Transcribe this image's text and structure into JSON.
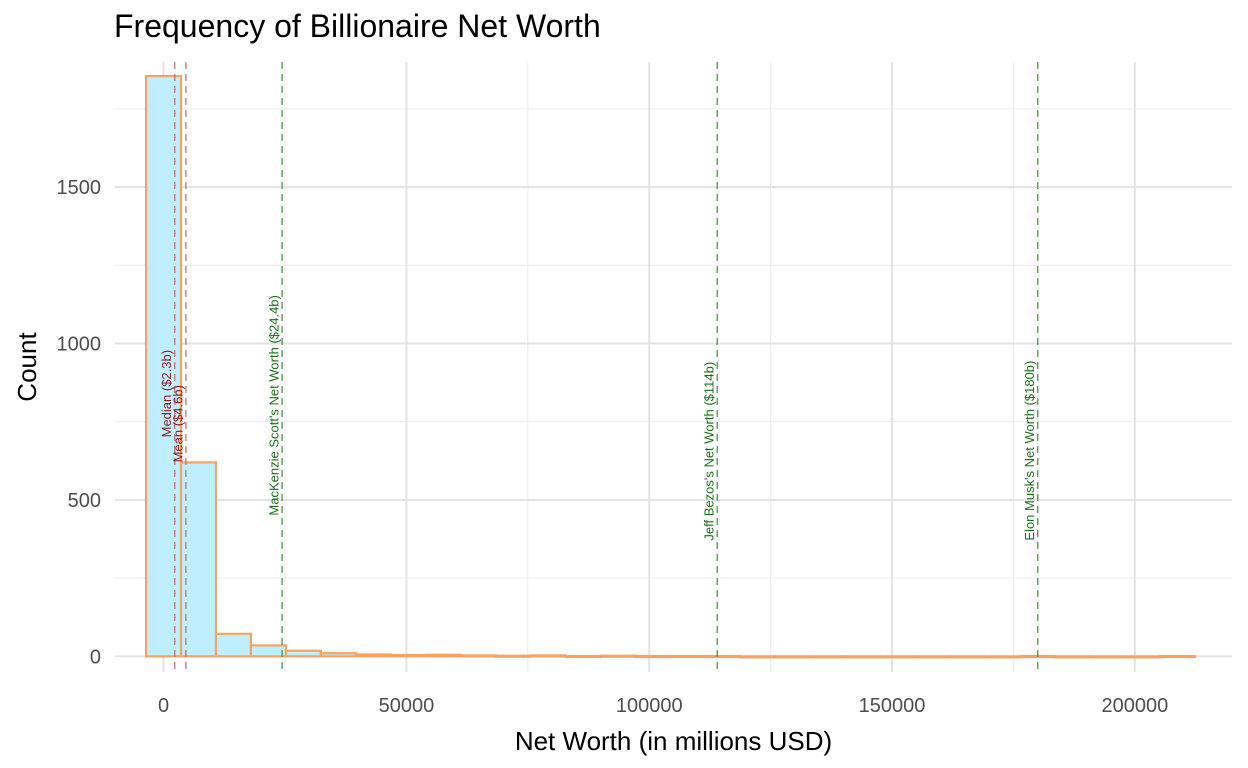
{
  "chart_data": {
    "type": "bar",
    "subtype": "histogram",
    "title": "Frequency of Billionaire Net Worth",
    "xlabel": "Net Worth (in millions USD)",
    "ylabel": "Count",
    "xlim": [
      -10000,
      220000
    ],
    "ylim": [
      -50,
      1900
    ],
    "x_ticks": [
      0,
      50000,
      100000,
      150000,
      200000
    ],
    "x_tick_labels": [
      "0",
      "50000",
      "100000",
      "150000",
      "200000"
    ],
    "y_ticks": [
      0,
      500,
      1000,
      1500
    ],
    "y_tick_labels": [
      "0",
      "500",
      "1000",
      "1500"
    ],
    "grid": true,
    "bar_fill": "#bfefff",
    "bar_outline": "#f4a460",
    "bins": [
      {
        "start": -3600,
        "end": 3600,
        "count": 1855
      },
      {
        "start": 3600,
        "end": 10800,
        "count": 620
      },
      {
        "start": 10800,
        "end": 18000,
        "count": 72
      },
      {
        "start": 18000,
        "end": 25200,
        "count": 35
      },
      {
        "start": 25200,
        "end": 32400,
        "count": 18
      },
      {
        "start": 32400,
        "end": 39600,
        "count": 10
      },
      {
        "start": 39600,
        "end": 46800,
        "count": 6
      },
      {
        "start": 46800,
        "end": 54000,
        "count": 4
      },
      {
        "start": 54000,
        "end": 61200,
        "count": 5
      },
      {
        "start": 61200,
        "end": 68400,
        "count": 3
      },
      {
        "start": 68400,
        "end": 75600,
        "count": 2
      },
      {
        "start": 75600,
        "end": 82800,
        "count": 3
      },
      {
        "start": 82800,
        "end": 90000,
        "count": 1
      },
      {
        "start": 90000,
        "end": 97200,
        "count": 2
      },
      {
        "start": 97200,
        "end": 104400,
        "count": 1
      },
      {
        "start": 104400,
        "end": 111600,
        "count": 1
      },
      {
        "start": 111600,
        "end": 118800,
        "count": 1
      },
      {
        "start": 118800,
        "end": 126000,
        "count": 0
      },
      {
        "start": 126000,
        "end": 133200,
        "count": 0
      },
      {
        "start": 133200,
        "end": 140400,
        "count": 0
      },
      {
        "start": 140400,
        "end": 147600,
        "count": 0
      },
      {
        "start": 147600,
        "end": 154800,
        "count": 0
      },
      {
        "start": 154800,
        "end": 162000,
        "count": 0
      },
      {
        "start": 162000,
        "end": 169200,
        "count": 0
      },
      {
        "start": 169200,
        "end": 176400,
        "count": 0
      },
      {
        "start": 176400,
        "end": 183600,
        "count": 1
      },
      {
        "start": 183600,
        "end": 190800,
        "count": 0
      },
      {
        "start": 190800,
        "end": 198000,
        "count": 0
      },
      {
        "start": 198000,
        "end": 205200,
        "count": 0
      },
      {
        "start": 205200,
        "end": 212400,
        "count": 1
      }
    ],
    "reference_lines": [
      {
        "x": 2300,
        "label": "Median ($2.3b)",
        "color": "#8b1a1a",
        "line_color": "#b46b6b",
        "label_y": 700
      },
      {
        "x": 4600,
        "label": "Mean ($4.6b)",
        "color": "#8b1a1a",
        "line_color": "#b46b6b",
        "label_y": 620
      },
      {
        "x": 24400,
        "label": "MacKenzie Scott's Net Worth ($24.4b)",
        "color": "#1a6b1a",
        "line_color": "#3d8b3d",
        "label_y": 450
      },
      {
        "x": 114000,
        "label": "Jeff Bezos's Net Worth ($114b)",
        "color": "#1a6b1a",
        "line_color": "#3d8b3d",
        "label_y": 370
      },
      {
        "x": 180000,
        "label": "Elon Musk's Net Worth ($180b)",
        "color": "#1a6b1a",
        "line_color": "#3d8b3d",
        "label_y": 370
      }
    ]
  }
}
